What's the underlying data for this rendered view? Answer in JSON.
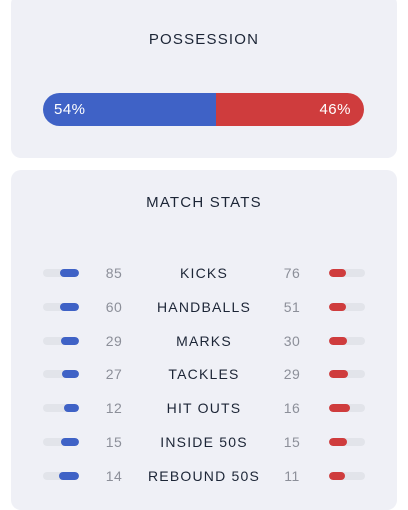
{
  "colors": {
    "home": "#3f62c6",
    "away": "#cf3c3d"
  },
  "possession": {
    "title": "POSSESSION",
    "home_pct": 54,
    "away_pct": 46,
    "home_label": "54%",
    "away_label": "46%"
  },
  "stats": {
    "title": "MATCH STATS",
    "rows": [
      {
        "label": "KICKS",
        "home": "85",
        "away": "76",
        "home_value": 85,
        "away_value": 76
      },
      {
        "label": "HANDBALLS",
        "home": "60",
        "away": "51",
        "home_value": 60,
        "away_value": 51
      },
      {
        "label": "MARKS",
        "home": "29",
        "away": "30",
        "home_value": 29,
        "away_value": 30
      },
      {
        "label": "TACKLES",
        "home": "27",
        "away": "29",
        "home_value": 27,
        "away_value": 29
      },
      {
        "label": "HIT OUTS",
        "home": "12",
        "away": "16",
        "home_value": 12,
        "away_value": 16
      },
      {
        "label": "INSIDE 50S",
        "home": "15",
        "away": "15",
        "home_value": 15,
        "away_value": 15
      },
      {
        "label": "REBOUND 50S",
        "home": "14",
        "away": "11",
        "home_value": 14,
        "away_value": 11
      }
    ]
  }
}
